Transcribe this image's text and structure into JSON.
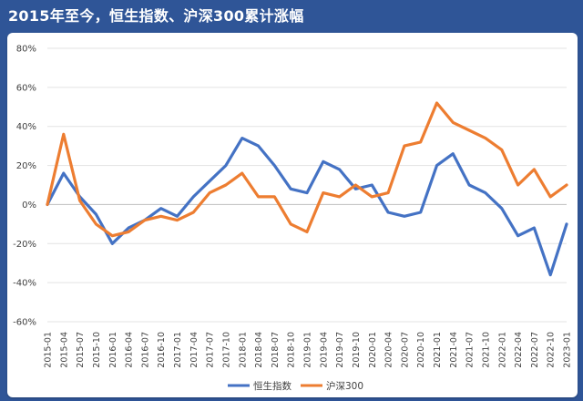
{
  "title": "2015年至今，恒生指数、沪深300累计涨幅",
  "chart_data": {
    "type": "line",
    "ylim": [
      -60,
      80
    ],
    "yticks": [
      "80%",
      "60%",
      "40%",
      "20%",
      "0%",
      "-20%",
      "-40%",
      "-60%"
    ],
    "categories": [
      "2015-01",
      "2015-04",
      "2015-07",
      "2015-10",
      "2016-01",
      "2016-04",
      "2016-07",
      "2016-10",
      "2017-01",
      "2017-04",
      "2017-07",
      "2017-10",
      "2018-01",
      "2018-04",
      "2018-07",
      "2018-10",
      "2019-01",
      "2019-04",
      "2019-07",
      "2019-10",
      "2020-01",
      "2020-04",
      "2020-07",
      "2020-10",
      "2021-01",
      "2021-04",
      "2021-07",
      "2021-10",
      "2022-01",
      "2022-04",
      "2022-07",
      "2022-10",
      "2023-01"
    ],
    "grid": true,
    "legend": "bottom",
    "series": [
      {
        "name": "恒生指数",
        "color": "#4472c4",
        "values": [
          0,
          16,
          4,
          -5,
          -20,
          -12,
          -8,
          -2,
          -6,
          4,
          12,
          20,
          34,
          30,
          20,
          8,
          6,
          22,
          18,
          8,
          10,
          -4,
          -6,
          -4,
          20,
          26,
          10,
          6,
          -2,
          -16,
          -12,
          -36,
          -10
        ]
      },
      {
        "name": "沪深300",
        "color": "#ed7d31",
        "values": [
          0,
          36,
          2,
          -10,
          -16,
          -14,
          -8,
          -6,
          -8,
          -4,
          6,
          10,
          16,
          4,
          4,
          -10,
          -14,
          6,
          4,
          10,
          4,
          6,
          30,
          32,
          52,
          42,
          38,
          34,
          28,
          10,
          18,
          4,
          10
        ]
      }
    ]
  }
}
